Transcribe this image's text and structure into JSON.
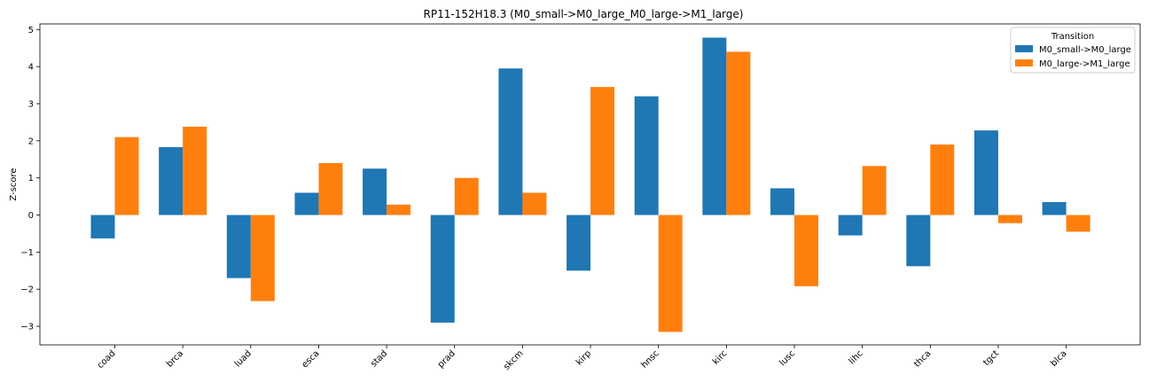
{
  "chart_data": {
    "type": "bar",
    "title": "RP11-152H18.3 (M0_small->M0_large_M0_large->M1_large)",
    "xlabel": "",
    "ylabel": "Z-score",
    "ylim": [
      -3.5,
      5.15
    ],
    "yticks": [
      -3,
      -2,
      -1,
      0,
      1,
      2,
      3,
      4,
      5
    ],
    "ytick_labels": [
      "−3",
      "−2",
      "−1",
      "0",
      "1",
      "2",
      "3",
      "4",
      "5"
    ],
    "grid": false,
    "categories": [
      "coad",
      "brca",
      "luad",
      "esca",
      "stad",
      "prad",
      "skcm",
      "kirp",
      "hnsc",
      "kirc",
      "lusc",
      "lihc",
      "thca",
      "tgct",
      "blca"
    ],
    "legend": {
      "title": "Transition",
      "placement": "top-right"
    },
    "series": [
      {
        "name": "M0_small->M0_large",
        "color": "#1f77b4",
        "values": [
          -0.63,
          1.83,
          -1.7,
          0.6,
          1.25,
          -2.9,
          3.95,
          -1.5,
          3.2,
          4.78,
          0.72,
          -0.55,
          -1.38,
          2.28,
          0.35
        ]
      },
      {
        "name": "M0_large->M1_large",
        "color": "#ff7f0e",
        "values": [
          2.1,
          2.38,
          -2.32,
          1.4,
          0.28,
          1.0,
          0.6,
          3.45,
          -3.15,
          4.4,
          -1.92,
          1.32,
          1.9,
          -0.22,
          -0.45
        ]
      }
    ]
  }
}
